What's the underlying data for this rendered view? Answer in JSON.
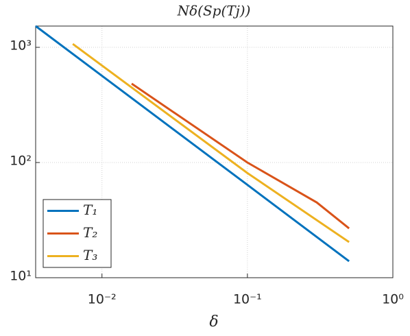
{
  "chart_data": {
    "type": "line",
    "title": "Nδ(Sp(Tj))",
    "x_label": "δ",
    "x_log": true,
    "y_log": true,
    "grid": true,
    "legend_position": "lower-left",
    "xlim": [
      0.0035,
      1
    ],
    "ylim": [
      10,
      1530
    ],
    "xticks": [
      {
        "value": 0.01,
        "label": "10⁻²"
      },
      {
        "value": 0.1,
        "label": "10⁻¹"
      },
      {
        "value": 1,
        "label": "10⁰"
      }
    ],
    "yticks": [
      {
        "value": 10,
        "label": "10¹"
      },
      {
        "value": 100,
        "label": "10²"
      },
      {
        "value": 1000,
        "label": "10³"
      }
    ],
    "series": [
      {
        "name": "T₁",
        "color": "#0072bd",
        "x": [
          0.0035,
          0.01,
          0.1,
          0.5
        ],
        "values": [
          1530,
          566,
          64,
          13.9
        ]
      },
      {
        "name": "T₂",
        "color": "#d95319",
        "x": [
          0.016,
          0.1,
          0.3,
          0.5
        ],
        "values": [
          484,
          100,
          45,
          26.8
        ]
      },
      {
        "name": "T₃",
        "color": "#edb120",
        "x": [
          0.0063,
          0.1,
          0.5
        ],
        "values": [
          1070,
          81,
          20.4
        ]
      }
    ]
  }
}
